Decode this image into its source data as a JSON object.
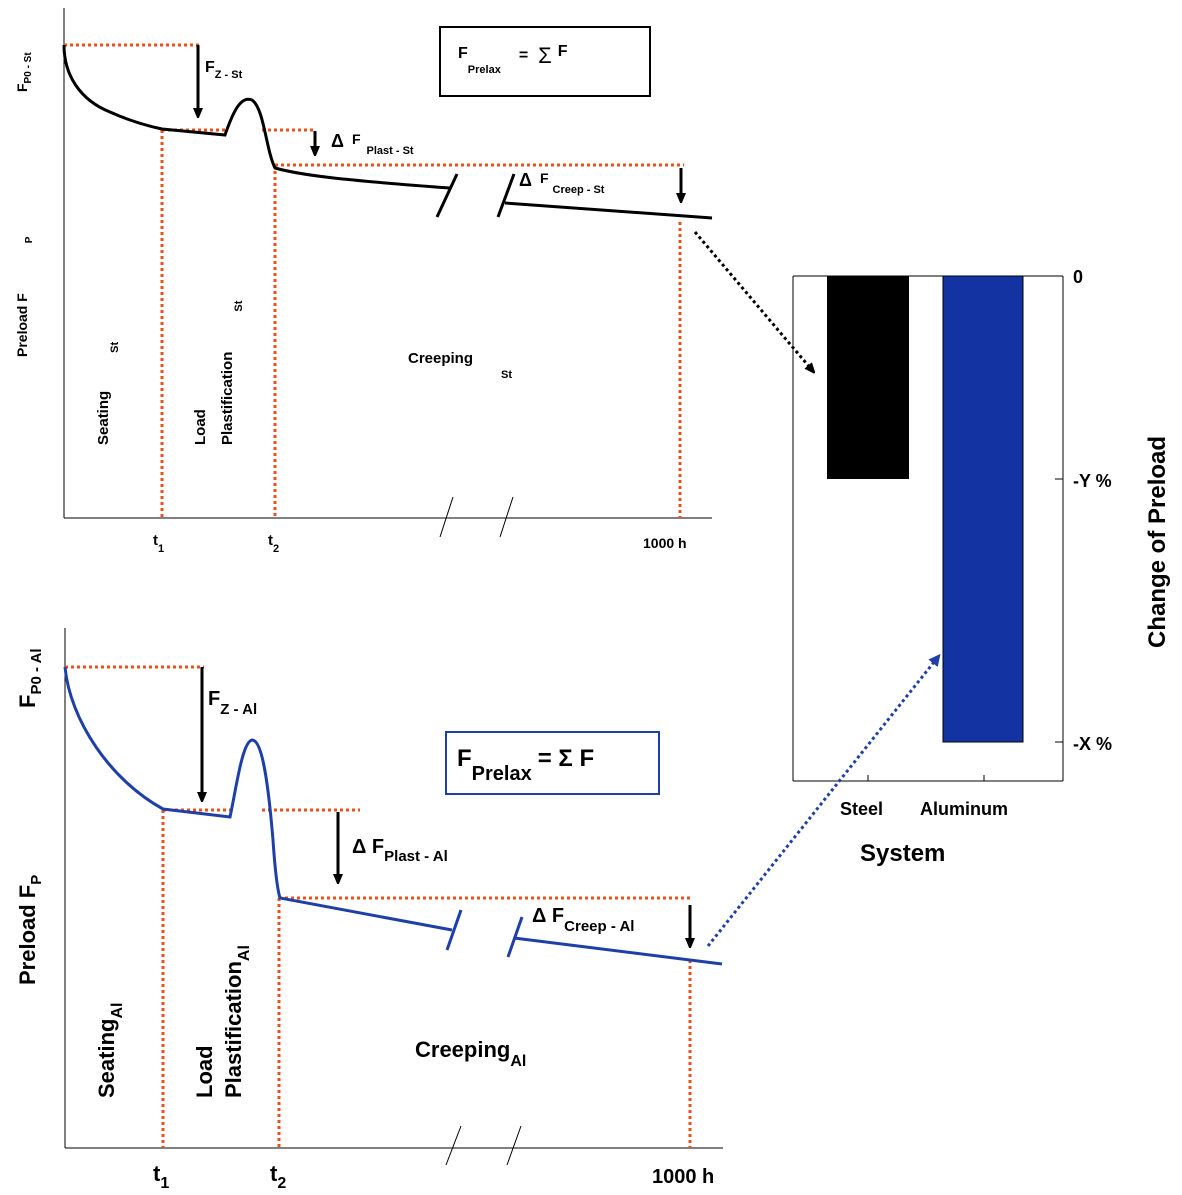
{
  "colors": {
    "steel_curve": "#000000",
    "aluminum_curve": "#1f3fa8",
    "guide": "#e8501e",
    "steel_bar": "#000000",
    "aluminum_bar": "#1333a3",
    "arrow_blue": "#1f3fa8"
  },
  "top": {
    "y_label_main": "Preload F",
    "y_label_sub": "P",
    "f0_main": "F",
    "f0_sub": "P0 - St",
    "fz_main": "F",
    "fz_sub": "Z - St",
    "plast_delta": "Δ",
    "plast_main": "F",
    "plast_sub": "Plast - St",
    "creep_delta": "Δ",
    "creep_main": "F",
    "creep_sub": "Creep - St",
    "formula_lhs": "F",
    "formula_sub": "Prelax",
    "formula_eq": "=",
    "formula_sum": "Σ",
    "formula_rhs": "F",
    "phase_seating": "Seating",
    "phase_seating_sub": "St",
    "phase_load": "Load",
    "phase_plast": "Plastification",
    "phase_plast_sub": "St",
    "phase_creeping": "Creeping",
    "phase_creeping_sub": "St",
    "t1_main": "t",
    "t1_sub": "1",
    "t2_main": "t",
    "t2_sub": "2",
    "end_tick": "1000 h"
  },
  "bottom": {
    "y_label_main": "Preload F",
    "y_label_sub": "P",
    "f0_main": "F",
    "f0_sub": "P0 - Al",
    "fz_main": "F",
    "fz_sub": "Z - Al",
    "plast_label": "Δ F",
    "plast_sub": "Plast - Al",
    "creep_label": "Δ F",
    "creep_sub": "Creep - Al",
    "formula_lhs": "F",
    "formula_sub": "Prelax",
    "formula_rhs": "= Σ F",
    "phase_seating": "Seating",
    "phase_seating_sub": "Al",
    "phase_load": "Load",
    "phase_plast": "Plastification",
    "phase_plast_sub": "Al",
    "phase_creeping": "Creeping",
    "phase_creeping_sub": "Al",
    "t1_main": "t",
    "t1_sub": "1",
    "t2_main": "t",
    "t2_sub": "2",
    "end_tick": "1000 h"
  },
  "bars": {
    "y_axis_label": "Change of Preload",
    "x_axis_label": "System",
    "ticks": [
      "0",
      "-Y %",
      "-X %"
    ],
    "categories": [
      "Steel",
      "Aluminum"
    ]
  }
}
